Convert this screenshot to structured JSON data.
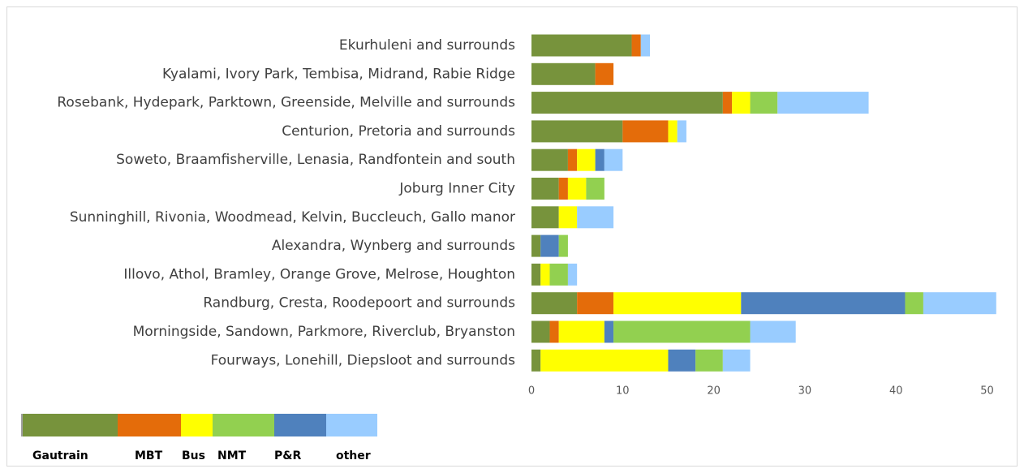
{
  "chart_data": {
    "type": "stacked_bar_horizontal",
    "categories": [
      "Ekurhuleni and surrounds",
      "Kyalami, Ivory Park, Tembisa, Midrand, Rabie Ridge",
      "Rosebank, Hydepark, Parktown, Greenside, Melville and surrounds",
      "Centurion, Pretoria and surrounds",
      "Soweto, Braamfisherville, Lenasia, Randfontein and south",
      "Joburg Inner City",
      "Sunninghill, Rivonia, Woodmead, Kelvin, Buccleuch, Gallo manor",
      "Alexandra, Wynberg and surrounds",
      "Illovo, Athol, Bramley, Orange Grove, Melrose, Houghton",
      "Randburg, Cresta, Roodepoort and surrounds",
      "Morningside, Sandown, Parkmore, Riverclub, Bryanston",
      "Fourways, Lonehill, Diepsloot and surrounds"
    ],
    "series": [
      {
        "name": "Gautrain",
        "color": "#77933c",
        "values": [
          11,
          7,
          21,
          10,
          4,
          3,
          3,
          1,
          1,
          5,
          2,
          1
        ]
      },
      {
        "name": "MBT",
        "color": "#e46c0a",
        "values": [
          1,
          2,
          1,
          5,
          1,
          1,
          0,
          0,
          0,
          4,
          1,
          0
        ]
      },
      {
        "name": "Bus",
        "color": "#ffff00",
        "values": [
          0,
          0,
          2,
          1,
          2,
          2,
          2,
          0,
          1,
          14,
          5,
          14
        ]
      },
      {
        "name": "NMT",
        "color": "#92d050",
        "values": [
          0,
          0,
          3,
          0,
          0,
          2,
          0,
          1,
          2,
          2,
          15,
          3
        ]
      },
      {
        "name": "P&R",
        "color": "#4f81bd",
        "values": [
          0,
          0,
          0,
          0,
          1,
          0,
          0,
          2,
          0,
          18,
          1,
          3
        ]
      },
      {
        "name": "other",
        "color": "#99ccff",
        "values": [
          1,
          0,
          10,
          1,
          2,
          0,
          4,
          0,
          1,
          8,
          5,
          3
        ]
      }
    ],
    "xlim": [
      0,
      52
    ],
    "xticks": [
      0,
      10,
      20,
      30,
      40,
      50
    ],
    "grid": false
  }
}
